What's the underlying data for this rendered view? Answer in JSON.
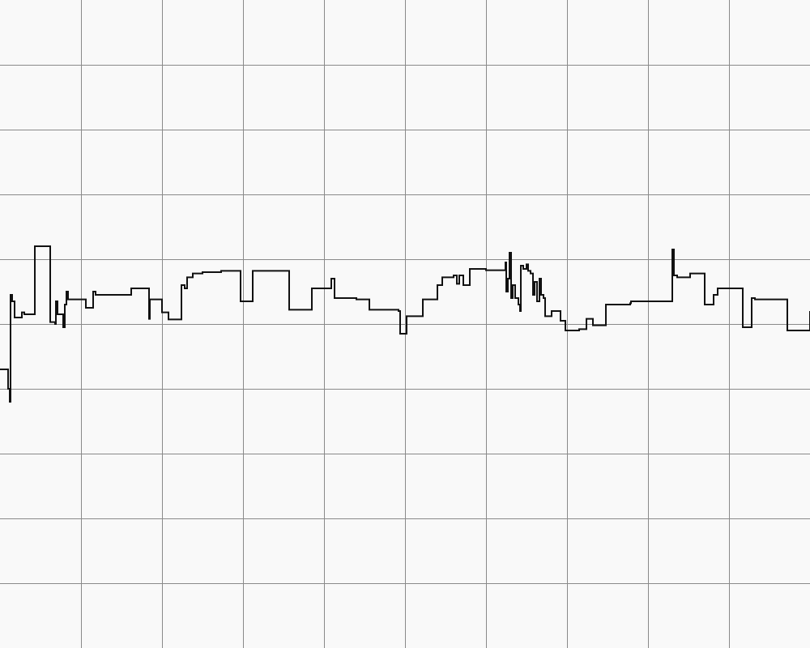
{
  "chart_data": {
    "type": "line",
    "title": "",
    "xlabel": "",
    "ylabel": "",
    "xlim": [
      0,
      1000
    ],
    "ylim": [
      -5,
      5
    ],
    "grid": true,
    "background_color": "#f9f9f9",
    "grid_color": "#8a8a8a",
    "line_color": "#111111",
    "series": [
      {
        "points": [
          [
            0,
            -0.7
          ],
          [
            9,
            -0.7
          ],
          [
            10,
            -1.0
          ],
          [
            12,
            -1.2
          ],
          [
            13,
            0.45
          ],
          [
            15,
            0.35
          ],
          [
            18,
            0.1
          ],
          [
            26,
            0.1
          ],
          [
            27,
            0.18
          ],
          [
            30,
            0.15
          ],
          [
            41,
            0.15
          ],
          [
            43,
            1.2
          ],
          [
            61,
            1.2
          ],
          [
            62,
            0.03
          ],
          [
            68,
            0.0
          ],
          [
            69,
            0.35
          ],
          [
            71,
            0.15
          ],
          [
            76,
            0.15
          ],
          [
            78,
            -0.05
          ],
          [
            80,
            0.3
          ],
          [
            82,
            0.5
          ],
          [
            84,
            0.38
          ],
          [
            104,
            0.38
          ],
          [
            106,
            0.25
          ],
          [
            113,
            0.25
          ],
          [
            115,
            0.5
          ],
          [
            118,
            0.45
          ],
          [
            160,
            0.45
          ],
          [
            162,
            0.55
          ],
          [
            183,
            0.55
          ],
          [
            184,
            0.08
          ],
          [
            185,
            0.38
          ],
          [
            198,
            0.38
          ],
          [
            200,
            0.18
          ],
          [
            207,
            0.18
          ],
          [
            208,
            0.07
          ],
          [
            222,
            0.07
          ],
          [
            224,
            0.6
          ],
          [
            228,
            0.55
          ],
          [
            231,
            0.72
          ],
          [
            236,
            0.72
          ],
          [
            238,
            0.78
          ],
          [
            247,
            0.78
          ],
          [
            250,
            0.8
          ],
          [
            270,
            0.8
          ],
          [
            273,
            0.82
          ],
          [
            295,
            0.82
          ],
          [
            297,
            0.35
          ],
          [
            310,
            0.35
          ],
          [
            312,
            0.82
          ],
          [
            355,
            0.82
          ],
          [
            357,
            0.22
          ],
          [
            383,
            0.22
          ],
          [
            385,
            0.55
          ],
          [
            406,
            0.55
          ],
          [
            409,
            0.7
          ],
          [
            413,
            0.4
          ],
          [
            438,
            0.4
          ],
          [
            440,
            0.38
          ],
          [
            453,
            0.38
          ],
          [
            456,
            0.22
          ],
          [
            478,
            0.22
          ],
          [
            492,
            0.2
          ],
          [
            494,
            -0.15
          ],
          [
            500,
            -0.15
          ],
          [
            502,
            0.12
          ],
          [
            520,
            0.12
          ],
          [
            522,
            0.38
          ],
          [
            532,
            0.38
          ],
          [
            540,
            0.6
          ],
          [
            546,
            0.72
          ],
          [
            560,
            0.75
          ],
          [
            564,
            0.62
          ],
          [
            567,
            0.75
          ],
          [
            570,
            0.75
          ],
          [
            572,
            0.6
          ],
          [
            577,
            0.6
          ],
          [
            580,
            0.85
          ],
          [
            598,
            0.85
          ],
          [
            600,
            0.83
          ],
          [
            620,
            0.83
          ],
          [
            624,
            0.95
          ],
          [
            625,
            0.5
          ],
          [
            627,
            0.7
          ],
          [
            629,
            1.1
          ],
          [
            631,
            0.4
          ],
          [
            633,
            0.6
          ],
          [
            636,
            0.4
          ],
          [
            640,
            0.3
          ],
          [
            642,
            0.2
          ],
          [
            643,
            0.9
          ],
          [
            646,
            0.85
          ],
          [
            650,
            0.92
          ],
          [
            652,
            0.82
          ],
          [
            655,
            0.78
          ],
          [
            658,
            0.45
          ],
          [
            660,
            0.65
          ],
          [
            663,
            0.35
          ],
          [
            666,
            0.7
          ],
          [
            668,
            0.45
          ],
          [
            671,
            0.4
          ],
          [
            673,
            0.12
          ],
          [
            678,
            0.12
          ],
          [
            681,
            0.2
          ],
          [
            688,
            0.2
          ],
          [
            692,
            0.05
          ],
          [
            696,
            0.05
          ],
          [
            698,
            -0.1
          ],
          [
            708,
            -0.1
          ],
          [
            715,
            -0.08
          ],
          [
            722,
            -0.08
          ],
          [
            724,
            0.08
          ],
          [
            730,
            0.08
          ],
          [
            732,
            -0.02
          ],
          [
            746,
            -0.02
          ],
          [
            748,
            0.3
          ],
          [
            760,
            0.3
          ],
          [
            778,
            0.32
          ],
          [
            779,
            0.35
          ],
          [
            800,
            0.35
          ],
          [
            828,
            0.35
          ],
          [
            830,
            1.15
          ],
          [
            832,
            0.75
          ],
          [
            836,
            0.72
          ],
          [
            850,
            0.72
          ],
          [
            852,
            0.78
          ],
          [
            868,
            0.78
          ],
          [
            870,
            0.3
          ],
          [
            878,
            0.3
          ],
          [
            881,
            0.45
          ],
          [
            886,
            0.55
          ],
          [
            900,
            0.55
          ],
          [
            914,
            0.55
          ],
          [
            917,
            -0.05
          ],
          [
            925,
            -0.05
          ],
          [
            928,
            0.4
          ],
          [
            932,
            0.38
          ],
          [
            969,
            0.38
          ],
          [
            972,
            -0.1
          ],
          [
            998,
            -0.1
          ],
          [
            1000,
            0.2
          ]
        ]
      }
    ]
  }
}
